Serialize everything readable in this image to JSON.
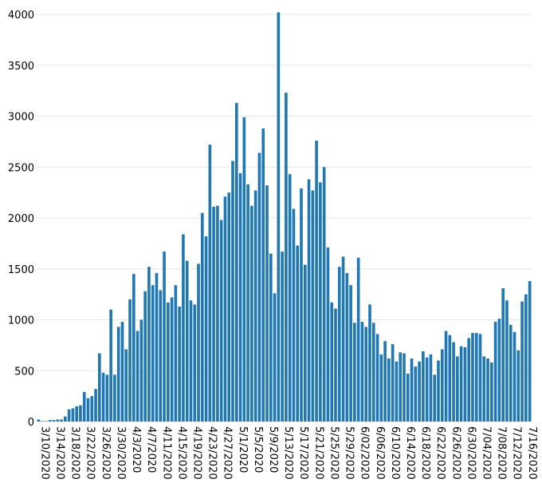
{
  "chart_data": {
    "type": "bar",
    "title": "",
    "xlabel": "",
    "ylabel": "",
    "ylim": [
      0,
      4000
    ],
    "grid": true,
    "y_ticks": [
      0,
      500,
      1000,
      1500,
      2000,
      2500,
      3000,
      3500,
      4000
    ],
    "x_tick_labels": [
      "3/10/2020",
      "3/14/2020",
      "3/18/2020",
      "3/22/2020",
      "3/26/2020",
      "3/30/2020",
      "4/3/2020",
      "4/7/2020",
      "4/11/2020",
      "4/15/2020",
      "4/19/2020",
      "4/23/2020",
      "4/27/2020",
      "5/1/2020",
      "5/5/2020",
      "5/9/2020",
      "5/13/2020",
      "5/17/2020",
      "5/21/2020",
      "5/25/2020",
      "5/29/2020",
      "6/02/2020",
      "6/06/2020",
      "6/10/2020",
      "6/14/2020",
      "6/18/2020",
      "6/22/2020",
      "6/26/2020",
      "6/30/2020",
      "7/04/2020",
      "7/08/2020",
      "7/12/2020",
      "7/16/2020"
    ],
    "start_date": "2020-03-10",
    "colors": {
      "bar": "#1f77b4",
      "grid": "#e6e6e6"
    },
    "values": [
      20,
      5,
      5,
      15,
      15,
      20,
      20,
      50,
      120,
      130,
      150,
      160,
      290,
      230,
      250,
      320,
      670,
      480,
      460,
      1100,
      460,
      930,
      980,
      710,
      1200,
      1450,
      890,
      1000,
      1280,
      1520,
      1340,
      1460,
      1290,
      1670,
      1170,
      1220,
      1340,
      1130,
      1840,
      1580,
      1190,
      1150,
      1550,
      2050,
      1820,
      2720,
      2110,
      2120,
      1980,
      2210,
      2250,
      2560,
      3130,
      2440,
      2990,
      2330,
      2120,
      2270,
      2640,
      2880,
      2320,
      1650,
      1260,
      4020,
      1670,
      3230,
      2430,
      2090,
      1730,
      2290,
      1540,
      2380,
      2270,
      2760,
      2350,
      2500,
      1710,
      1170,
      1110,
      1520,
      1620,
      1460,
      1340,
      970,
      1610,
      980,
      930,
      1150,
      970,
      860,
      660,
      790,
      620,
      760,
      590,
      680,
      670,
      470,
      620,
      540,
      590,
      690,
      630,
      660,
      460,
      600,
      710,
      890,
      850,
      780,
      640,
      740,
      730,
      820,
      870,
      870,
      860,
      640,
      620,
      580,
      980,
      1010,
      1310,
      1190,
      950,
      880,
      700,
      1180,
      1250,
      1380
    ]
  }
}
